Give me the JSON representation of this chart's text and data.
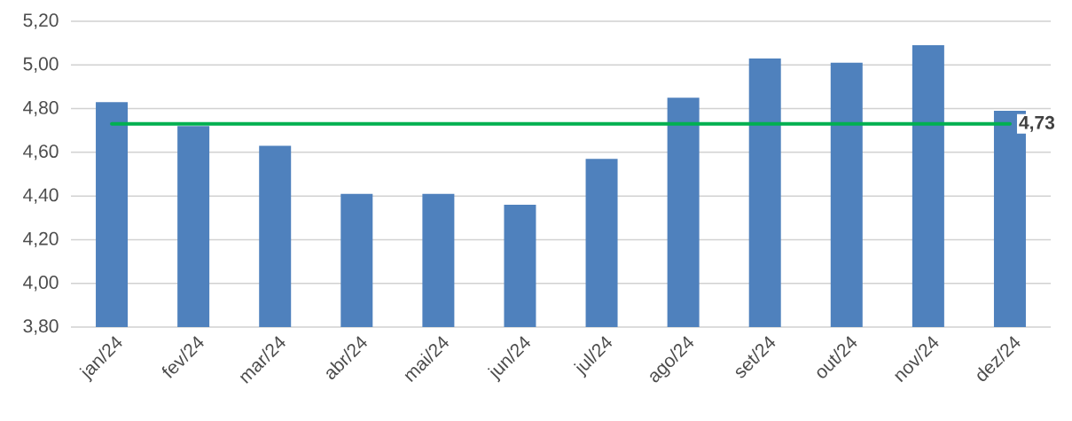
{
  "chart_data": {
    "type": "bar",
    "categories": [
      "jan/24",
      "fev/24",
      "mar/24",
      "abr/24",
      "mai/24",
      "jun/24",
      "jul/24",
      "ago/24",
      "set/24",
      "out/24",
      "nov/24",
      "dez/24"
    ],
    "values": [
      4.83,
      4.72,
      4.63,
      4.41,
      4.41,
      4.36,
      4.57,
      4.85,
      5.03,
      5.01,
      5.09,
      4.79
    ],
    "color": "#4f81bd",
    "ylim": [
      3.8,
      5.2
    ],
    "yticks": [
      {
        "value": 3.8,
        "label": "3,80"
      },
      {
        "value": 4.0,
        "label": "4,00"
      },
      {
        "value": 4.2,
        "label": "4,20"
      },
      {
        "value": 4.4,
        "label": "4,40"
      },
      {
        "value": 4.6,
        "label": "4,60"
      },
      {
        "value": 4.8,
        "label": "4,80"
      },
      {
        "value": 5.0,
        "label": "5,00"
      },
      {
        "value": 5.2,
        "label": "5,20"
      }
    ],
    "grid": "y",
    "ref_lines": [
      {
        "axis": "y",
        "value": 4.73,
        "label": "4,73",
        "color": "#00b050"
      }
    ]
  }
}
